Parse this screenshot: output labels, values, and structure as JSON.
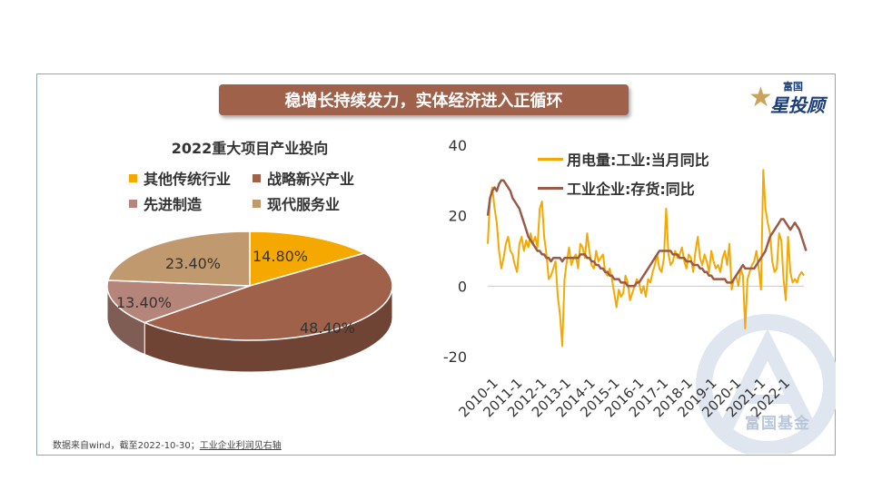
{
  "banner_title": "稳增长持续发力，实体经济进入正循环",
  "logo": {
    "top_text": "富国",
    "main_text": "投顾",
    "star_glyph": "星"
  },
  "watermark_text": "富国基金",
  "source_note": {
    "part1": "数据来自wind，截至2022-10-30；",
    "part2": "工业企业利润见右轴"
  },
  "colors": {
    "accent": "#a0614a",
    "pie_other": "#f5a800",
    "pie_strategic": "#a0614a",
    "pie_manufacturing": "#b5857a",
    "pie_service": "#c09a6e",
    "line_power": "#f5a800",
    "line_inventory": "#9b5a46"
  },
  "chart_data": [
    {
      "type": "pie",
      "title": "2022重大项目产业投向",
      "slices": [
        {
          "name": "其他传统行业",
          "value": 14.8,
          "label": "14.80%",
          "color": "#f5a800"
        },
        {
          "name": "战略新兴产业",
          "value": 48.4,
          "label": "48.40%",
          "color": "#a0614a"
        },
        {
          "name": "先进制造",
          "value": 13.4,
          "label": "13.40%",
          "color": "#b5857a"
        },
        {
          "name": "现代服务业",
          "value": 23.4,
          "label": "23.40%",
          "color": "#c09a6e"
        }
      ]
    },
    {
      "type": "line",
      "ylim": [
        -20,
        40
      ],
      "yticks": [
        "40",
        "20",
        "0",
        "-20"
      ],
      "xticks": [
        "2010-1",
        "2011-1",
        "2012-1",
        "2013-1",
        "2014-1",
        "2015-1",
        "2016-1",
        "2017-1",
        "2018-1",
        "2019-1",
        "2020-1",
        "2021-1",
        "2022-1"
      ],
      "x_start": "2010-1",
      "series": [
        {
          "name": "用电量:工业:当月同比",
          "color": "#f5a800",
          "values": [
            12,
            25,
            28,
            22,
            18,
            10,
            5,
            8,
            12,
            14,
            10,
            9,
            6,
            4,
            12,
            14,
            10,
            13,
            11,
            15,
            12,
            14,
            11,
            22,
            24,
            14,
            9,
            2,
            3,
            5,
            7,
            -3,
            -8,
            -17,
            2,
            7,
            11,
            6,
            8,
            9,
            5,
            12,
            11,
            8,
            15,
            10,
            6,
            5,
            10,
            7,
            8,
            9,
            4,
            3,
            5,
            2,
            -2,
            -6,
            -1,
            -3,
            -2,
            3,
            1,
            -4,
            -2,
            0,
            2,
            1,
            -2,
            0,
            -3,
            2,
            1,
            4,
            6,
            9,
            5,
            4,
            8,
            22,
            9,
            6,
            7,
            10,
            8,
            9,
            11,
            7,
            5,
            9,
            8,
            4,
            10,
            14,
            8,
            6,
            9,
            7,
            4,
            10,
            7,
            5,
            6,
            4,
            8,
            10,
            6,
            12,
            -1,
            2,
            3,
            0,
            5,
            3,
            -12,
            2,
            4,
            6,
            7,
            10,
            5,
            -1,
            33,
            22,
            18,
            15,
            7,
            4,
            5,
            15,
            13,
            2,
            -4,
            14,
            4,
            1,
            2,
            1,
            3,
            4,
            3
          ]
        },
        {
          "name": "工业企业:存货:同比",
          "color": "#9b5a46",
          "values": [
            20,
            25,
            27,
            28,
            27,
            29,
            30,
            30,
            29,
            28,
            27,
            25,
            24,
            23,
            22,
            20,
            18,
            16,
            14,
            13,
            12,
            11,
            10,
            10,
            9,
            9,
            8,
            8,
            7,
            8,
            8,
            8,
            8,
            7,
            8,
            8,
            8,
            8,
            8,
            8,
            8,
            9,
            9,
            9,
            8,
            8,
            7,
            7,
            6,
            6,
            5,
            5,
            4,
            4,
            3,
            3,
            2,
            2,
            2,
            1,
            1,
            1,
            0,
            0,
            0,
            0,
            1,
            1,
            2,
            3,
            4,
            5,
            6,
            7,
            8,
            9,
            10,
            10,
            10,
            10,
            10,
            10,
            9,
            9,
            9,
            8,
            8,
            8,
            7,
            7,
            7,
            6,
            6,
            6,
            5,
            5,
            4,
            4,
            3,
            3,
            2,
            2,
            2,
            2,
            2,
            2,
            1,
            1,
            1,
            2,
            3,
            4,
            5,
            6,
            5,
            5,
            5,
            5,
            5,
            6,
            7,
            8,
            9,
            10,
            12,
            14,
            15,
            16,
            17,
            18,
            19,
            19,
            18,
            17,
            16,
            17,
            18,
            17,
            16,
            14,
            12,
            10
          ]
        }
      ]
    }
  ]
}
